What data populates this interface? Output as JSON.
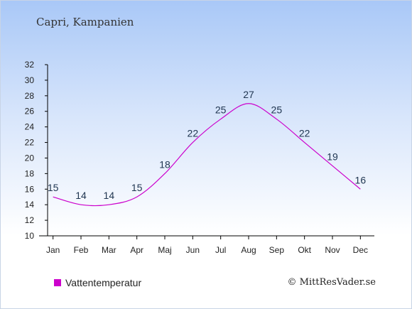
{
  "header": {
    "location": "Capri, Kampanien"
  },
  "footer": {
    "legend_label": "Vattentemperatur",
    "credit": "© MittResVader.se"
  },
  "colors": {
    "series": "#cc00cc",
    "axis": "#000000",
    "label": "#1f3550"
  },
  "chart_data": {
    "type": "line",
    "title": "Capri, Kampanien",
    "xlabel": "",
    "ylabel": "",
    "categories": [
      "Jan",
      "Feb",
      "Mar",
      "Apr",
      "Maj",
      "Jun",
      "Jul",
      "Aug",
      "Sep",
      "Okt",
      "Nov",
      "Dec"
    ],
    "series": [
      {
        "name": "Vattentemperatur",
        "values": [
          15,
          14,
          14,
          15,
          18,
          22,
          25,
          27,
          25,
          22,
          19,
          16
        ]
      }
    ],
    "ylim": [
      10,
      32
    ],
    "yticks": [
      10,
      12,
      14,
      16,
      18,
      20,
      22,
      24,
      26,
      28,
      30,
      32
    ],
    "grid": false,
    "legend_position": "bottom-left"
  }
}
